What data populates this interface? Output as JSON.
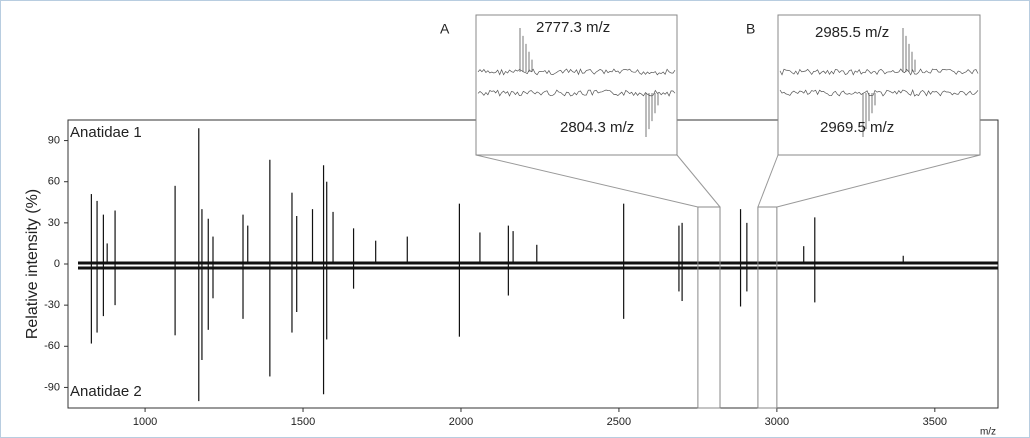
{
  "chart_data": {
    "type": "mirror-spectrum",
    "y_label": "Relative intensity (%)",
    "x_label": "m/z",
    "xlim": [
      756,
      3700
    ],
    "ylim": [
      -105,
      105
    ],
    "xticks": [
      1000,
      1500,
      2000,
      2500,
      3000,
      3500
    ],
    "yticks": [
      -90,
      -60,
      -30,
      0,
      30,
      60,
      90
    ],
    "color": "#111111",
    "series": [
      {
        "name": "Anatidae 1",
        "x": [
          830,
          848,
          868,
          880,
          905,
          1095,
          1170,
          1180,
          1200,
          1215,
          1310,
          1325,
          1395,
          1465,
          1480,
          1530,
          1565,
          1575,
          1595,
          1660,
          1730,
          1830,
          1995,
          2060,
          2150,
          2165,
          2240,
          2515,
          2690,
          2700,
          2885,
          2905,
          3085,
          3120,
          3400
        ],
        "values": [
          51,
          46,
          36,
          15,
          39,
          57,
          99,
          40,
          33,
          20,
          36,
          28,
          76,
          52,
          35,
          40,
          72,
          60,
          38,
          26,
          17,
          20,
          44,
          23,
          28,
          24,
          14,
          44,
          28,
          30,
          40,
          30,
          13,
          34,
          6
        ]
      },
      {
        "name": "Anatidae 2",
        "x": [
          830,
          848,
          868,
          905,
          1095,
          1170,
          1180,
          1200,
          1215,
          1310,
          1395,
          1465,
          1480,
          1565,
          1575,
          1660,
          1995,
          2150,
          2515,
          2690,
          2700,
          2885,
          2905,
          3120
        ],
        "values": [
          -58,
          -50,
          -38,
          -30,
          -52,
          -100,
          -70,
          -48,
          -25,
          -40,
          -82,
          -50,
          -35,
          -95,
          -55,
          -18,
          -53,
          -23,
          -40,
          -20,
          -27,
          -31,
          -20,
          -28
        ]
      }
    ],
    "insets": [
      {
        "label": "A",
        "xlim": [
          2750,
          2820
        ],
        "top_annotation": "2777.3 m/z",
        "bottom_annotation": "2804.3 m/z"
      },
      {
        "label": "B",
        "xlim": [
          2940,
          3000
        ],
        "top_annotation": "2985.5 m/z",
        "bottom_annotation": "2969.5 m/z"
      }
    ]
  }
}
